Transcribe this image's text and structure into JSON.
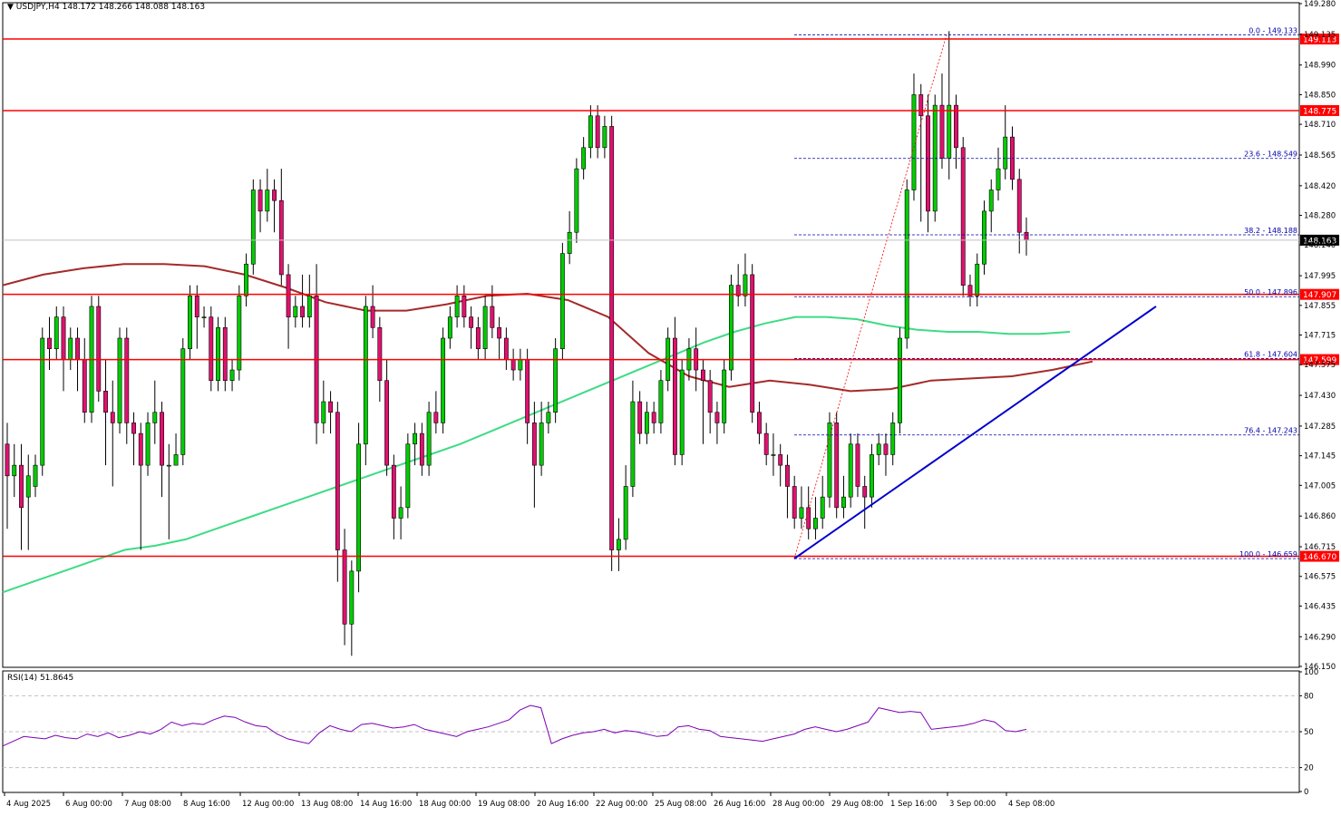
{
  "header": {
    "symbol": "USDJPY,H4",
    "ohlc": "148.172 148.266 148.088 148.163"
  },
  "rsi_header": "RSI(14) 51.8645",
  "colors": {
    "bull": "#00cc00",
    "bear": "#e0116f",
    "resistance": "#ff0000",
    "trendline": "#0000cc",
    "ma_slow": "#3ddc84",
    "ma_fast": "#a52a2a",
    "fib_line": "#0000aa",
    "rsi_line": "#7b00b4",
    "grid": "#c0c0c0"
  },
  "chart_data": [
    {
      "type": "candlestick",
      "title": "",
      "price_axis": {
        "ylim": [
          146.15,
          149.28
        ],
        "ticks": [
          "149.280",
          "149.135",
          "148.990",
          "148.850",
          "148.710",
          "148.565",
          "148.420",
          "148.280",
          "148.140",
          "147.995",
          "147.855",
          "147.715",
          "147.575",
          "147.430",
          "147.285",
          "147.145",
          "147.005",
          "146.860",
          "146.715",
          "146.575",
          "146.435",
          "146.290",
          "146.150"
        ]
      },
      "time_axis": {
        "labels": [
          "4 Aug 2025",
          "6 Aug 00:00",
          "7 Aug 08:00",
          "8 Aug 16:00",
          "12 Aug 00:00",
          "13 Aug 08:00",
          "14 Aug 16:00",
          "18 Aug 00:00",
          "19 Aug 08:00",
          "20 Aug 16:00",
          "22 Aug 00:00",
          "25 Aug 08:00",
          "26 Aug 16:00",
          "28 Aug 00:00",
          "29 Aug 08:00",
          "1 Sep 16:00",
          "3 Sep 00:00",
          "4 Sep 08:00"
        ]
      },
      "price_levels": [
        {
          "label": "149.113",
          "value": 149.113
        },
        {
          "label": "148.775",
          "value": 148.775
        },
        {
          "label": "147.907",
          "value": 147.907
        },
        {
          "label": "147.599",
          "value": 147.599
        },
        {
          "label": "146.670",
          "value": 146.67
        }
      ],
      "current_price": {
        "label": "148.163",
        "value": 148.163
      },
      "fibonacci": [
        {
          "label": "0.0 - 149.133",
          "value": 149.133
        },
        {
          "label": "23.6 - 148.549",
          "value": 148.549
        },
        {
          "label": "38.2 - 148.188",
          "value": 148.188
        },
        {
          "label": "50.0 - 147.896",
          "value": 147.896
        },
        {
          "label": "61.8 - 147.604",
          "value": 147.604
        },
        {
          "label": "76.4 - 147.243",
          "value": 147.243
        },
        {
          "label": "100.0 - 146.659",
          "value": 146.659
        }
      ],
      "candles": [
        [
          147.2,
          147.05,
          147.3,
          146.8
        ],
        [
          147.05,
          147.1,
          147.2,
          146.95
        ],
        [
          147.1,
          146.9,
          147.2,
          146.7
        ],
        [
          146.95,
          147.05,
          147.15,
          146.7
        ],
        [
          147.0,
          147.1,
          147.15,
          146.95
        ],
        [
          147.1,
          147.7,
          147.75,
          147.05
        ],
        [
          147.7,
          147.65,
          147.8,
          147.55
        ],
        [
          147.65,
          147.8,
          147.85,
          147.6
        ],
        [
          147.8,
          147.6,
          147.85,
          147.45
        ],
        [
          147.6,
          147.7,
          147.75,
          147.55
        ],
        [
          147.7,
          147.6,
          147.75,
          147.45
        ],
        [
          147.6,
          147.35,
          147.7,
          147.3
        ],
        [
          147.35,
          147.85,
          147.9,
          147.3
        ],
        [
          147.85,
          147.45,
          147.9,
          147.4
        ],
        [
          147.45,
          147.35,
          147.6,
          147.1
        ],
        [
          147.35,
          147.3,
          147.5,
          147.0
        ],
        [
          147.3,
          147.7,
          147.75,
          147.25
        ],
        [
          147.7,
          147.3,
          147.75,
          147.2
        ],
        [
          147.3,
          147.25,
          147.35,
          147.1
        ],
        [
          147.25,
          147.1,
          147.3,
          146.7
        ],
        [
          147.1,
          147.3,
          147.35,
          147.05
        ],
        [
          147.3,
          147.35,
          147.5,
          147.2
        ],
        [
          147.35,
          147.1,
          147.4,
          146.95
        ],
        [
          147.1,
          147.1,
          147.2,
          146.75
        ],
        [
          147.1,
          147.15,
          147.25,
          147.1
        ],
        [
          147.15,
          147.65,
          147.7,
          147.1
        ],
        [
          147.65,
          147.9,
          147.95,
          147.6
        ],
        [
          147.9,
          147.8,
          147.95,
          147.65
        ],
        [
          147.8,
          147.8,
          147.85,
          147.75
        ],
        [
          147.8,
          147.5,
          147.85,
          147.45
        ],
        [
          147.5,
          147.75,
          147.8,
          147.45
        ],
        [
          147.75,
          147.5,
          147.8,
          147.45
        ],
        [
          147.5,
          147.55,
          147.6,
          147.45
        ],
        [
          147.55,
          147.9,
          147.95,
          147.5
        ],
        [
          147.9,
          148.05,
          148.1,
          147.85
        ],
        [
          148.05,
          148.4,
          148.45,
          148.0
        ],
        [
          148.4,
          148.3,
          148.45,
          148.2
        ],
        [
          148.3,
          148.4,
          148.5,
          148.25
        ],
        [
          148.4,
          148.35,
          148.45,
          148.2
        ],
        [
          148.35,
          148.0,
          148.5,
          147.95
        ],
        [
          148.0,
          147.8,
          148.05,
          147.65
        ],
        [
          147.8,
          147.85,
          147.9,
          147.75
        ],
        [
          147.85,
          147.8,
          148.0,
          147.75
        ],
        [
          147.8,
          147.9,
          148.0,
          147.75
        ],
        [
          147.9,
          147.3,
          148.05,
          147.2
        ],
        [
          147.3,
          147.4,
          147.5,
          147.25
        ],
        [
          147.4,
          147.35,
          147.45,
          147.25
        ],
        [
          147.35,
          146.7,
          147.4,
          146.55
        ],
        [
          146.7,
          146.35,
          146.8,
          146.25
        ],
        [
          146.35,
          146.6,
          146.65,
          146.2
        ],
        [
          146.6,
          147.2,
          147.3,
          146.5
        ],
        [
          147.2,
          147.85,
          147.9,
          147.1
        ],
        [
          147.85,
          147.75,
          147.95,
          147.7
        ],
        [
          147.75,
          147.5,
          147.8,
          147.4
        ],
        [
          147.5,
          147.1,
          147.6,
          147.05
        ],
        [
          147.1,
          146.85,
          147.15,
          146.75
        ],
        [
          146.85,
          146.9,
          147.0,
          146.75
        ],
        [
          146.9,
          147.2,
          147.25,
          146.85
        ],
        [
          147.2,
          147.25,
          147.3,
          147.1
        ],
        [
          147.25,
          147.1,
          147.3,
          147.05
        ],
        [
          147.1,
          147.35,
          147.4,
          147.05
        ],
        [
          147.35,
          147.3,
          147.45,
          147.25
        ],
        [
          147.3,
          147.7,
          147.75,
          147.25
        ],
        [
          147.7,
          147.8,
          147.85,
          147.65
        ],
        [
          147.8,
          147.9,
          147.95,
          147.75
        ],
        [
          147.9,
          147.8,
          147.95,
          147.75
        ],
        [
          147.8,
          147.75,
          147.85,
          147.65
        ],
        [
          147.75,
          147.65,
          147.8,
          147.6
        ],
        [
          147.65,
          147.85,
          147.9,
          147.6
        ],
        [
          147.85,
          147.75,
          147.95,
          147.7
        ],
        [
          147.75,
          147.7,
          147.8,
          147.6
        ],
        [
          147.7,
          147.6,
          147.75,
          147.55
        ],
        [
          147.6,
          147.55,
          147.65,
          147.5
        ],
        [
          147.55,
          147.6,
          147.65,
          147.5
        ],
        [
          147.6,
          147.3,
          147.65,
          147.2
        ],
        [
          147.3,
          147.1,
          147.4,
          146.9
        ],
        [
          147.1,
          147.3,
          147.4,
          147.05
        ],
        [
          147.3,
          147.35,
          147.4,
          147.25
        ],
        [
          147.35,
          147.65,
          147.7,
          147.3
        ],
        [
          147.65,
          148.1,
          148.15,
          147.6
        ],
        [
          148.1,
          148.2,
          148.3,
          148.05
        ],
        [
          148.2,
          148.5,
          148.55,
          148.15
        ],
        [
          148.5,
          148.6,
          148.65,
          148.45
        ],
        [
          148.6,
          148.75,
          148.8,
          148.55
        ],
        [
          148.75,
          148.6,
          148.8,
          148.55
        ],
        [
          148.6,
          148.7,
          148.75,
          148.55
        ],
        [
          148.7,
          146.7,
          148.75,
          146.6
        ],
        [
          146.7,
          146.75,
          146.85,
          146.6
        ],
        [
          146.75,
          147.0,
          147.1,
          146.7
        ],
        [
          147.0,
          147.4,
          147.5,
          146.95
        ],
        [
          147.4,
          147.25,
          147.45,
          147.2
        ],
        [
          147.25,
          147.35,
          147.4,
          147.2
        ],
        [
          147.35,
          147.3,
          147.4,
          147.25
        ],
        [
          147.3,
          147.5,
          147.55,
          147.25
        ],
        [
          147.5,
          147.7,
          147.75,
          147.45
        ],
        [
          147.7,
          147.15,
          147.8,
          147.1
        ],
        [
          147.15,
          147.55,
          147.6,
          147.1
        ],
        [
          147.55,
          147.65,
          147.7,
          147.5
        ],
        [
          147.65,
          147.55,
          147.75,
          147.45
        ],
        [
          147.55,
          147.5,
          147.6,
          147.2
        ],
        [
          147.5,
          147.35,
          147.55,
          147.25
        ],
        [
          147.35,
          147.3,
          147.4,
          147.2
        ],
        [
          147.3,
          147.55,
          147.6,
          147.25
        ],
        [
          147.55,
          147.95,
          148.0,
          147.5
        ],
        [
          147.95,
          147.9,
          148.05,
          147.85
        ],
        [
          147.9,
          148.0,
          148.1,
          147.85
        ],
        [
          148.0,
          147.35,
          148.05,
          147.3
        ],
        [
          147.35,
          147.25,
          147.4,
          147.2
        ],
        [
          147.25,
          147.15,
          147.3,
          147.1
        ],
        [
          147.15,
          147.15,
          147.25,
          147.05
        ],
        [
          147.15,
          147.1,
          147.2,
          147.0
        ],
        [
          147.1,
          147.0,
          147.15,
          146.85
        ],
        [
          147.0,
          146.85,
          147.05,
          146.8
        ],
        [
          146.85,
          146.9,
          147.0,
          146.8
        ],
        [
          146.9,
          146.8,
          147.0,
          146.75
        ],
        [
          146.8,
          146.85,
          146.95,
          146.75
        ],
        [
          146.85,
          146.95,
          147.05,
          146.8
        ],
        [
          146.95,
          147.3,
          147.35,
          146.9
        ],
        [
          147.3,
          146.9,
          147.35,
          146.85
        ],
        [
          146.9,
          146.95,
          147.05,
          146.85
        ],
        [
          146.95,
          147.2,
          147.25,
          146.9
        ],
        [
          147.2,
          147.0,
          147.25,
          146.95
        ],
        [
          147.0,
          146.95,
          147.05,
          146.8
        ],
        [
          146.95,
          147.15,
          147.2,
          146.9
        ],
        [
          147.15,
          147.2,
          147.25,
          147.1
        ],
        [
          147.2,
          147.15,
          147.25,
          147.05
        ],
        [
          147.15,
          147.3,
          147.35,
          147.1
        ],
        [
          147.3,
          147.7,
          147.75,
          147.25
        ],
        [
          147.7,
          148.4,
          148.45,
          147.65
        ],
        [
          148.4,
          148.85,
          148.95,
          148.35
        ],
        [
          148.85,
          148.75,
          148.9,
          148.25
        ],
        [
          148.75,
          148.3,
          148.85,
          148.2
        ],
        [
          148.3,
          148.8,
          148.85,
          148.25
        ],
        [
          148.8,
          148.55,
          148.95,
          148.5
        ],
        [
          148.55,
          148.8,
          149.15,
          148.45
        ],
        [
          148.8,
          148.6,
          148.85,
          148.5
        ],
        [
          148.6,
          147.95,
          148.65,
          147.9
        ],
        [
          147.95,
          147.9,
          148.0,
          147.85
        ],
        [
          147.9,
          148.05,
          148.1,
          147.85
        ],
        [
          148.05,
          148.3,
          148.35,
          148.0
        ],
        [
          148.3,
          148.4,
          148.45,
          148.2
        ],
        [
          148.4,
          148.5,
          148.6,
          148.35
        ],
        [
          148.5,
          148.65,
          148.8,
          148.45
        ],
        [
          148.65,
          148.45,
          148.7,
          148.4
        ],
        [
          148.45,
          148.2,
          148.5,
          148.1
        ],
        [
          148.2,
          148.163,
          148.27,
          148.09
        ]
      ],
      "ma_slow": [
        146.5,
        146.55,
        146.6,
        146.65,
        146.7,
        146.72,
        146.75,
        146.8,
        146.85,
        146.9,
        146.95,
        147.0,
        147.05,
        147.1,
        147.15,
        147.2,
        147.26,
        147.32,
        147.38,
        147.44,
        147.5,
        147.56,
        147.62,
        147.68,
        147.73,
        147.77,
        147.8,
        147.8,
        147.79,
        147.76,
        147.74,
        147.73,
        147.73,
        147.72,
        147.72,
        147.73
      ],
      "ma_fast": [
        147.95,
        148.0,
        148.03,
        148.05,
        148.05,
        148.04,
        148.0,
        147.94,
        147.87,
        147.83,
        147.83,
        147.86,
        147.9,
        147.91,
        147.88,
        147.8,
        147.63,
        147.52,
        147.47,
        147.5,
        147.48,
        147.45,
        147.46,
        147.5,
        147.51,
        147.52,
        147.55,
        147.59
      ],
      "trendline": {
        "from": [
          146.659
        ],
        "to": [
          147.85
        ]
      }
    },
    {
      "type": "line",
      "title": "RSI(14) 51.8645",
      "ylim": [
        0,
        100
      ],
      "ticks": [
        "100",
        "80",
        "50",
        "20",
        "0"
      ],
      "levels": [
        80,
        50,
        20
      ],
      "values": [
        38,
        42,
        46,
        45,
        44,
        47,
        45,
        44,
        48,
        46,
        49,
        45,
        47,
        50,
        48,
        52,
        58,
        55,
        57,
        56,
        60,
        63,
        62,
        58,
        55,
        54,
        48,
        44,
        42,
        40,
        49,
        55,
        52,
        50,
        56,
        57,
        55,
        53,
        54,
        56,
        52,
        50,
        48,
        46,
        50,
        52,
        54,
        57,
        60,
        68,
        72,
        70,
        40,
        44,
        47,
        49,
        50,
        52,
        49,
        51,
        50,
        48,
        46,
        47,
        54,
        55,
        52,
        51,
        46,
        45,
        44,
        43,
        42,
        44,
        46,
        48,
        52,
        54,
        52,
        50,
        52,
        55,
        58,
        70,
        68,
        66,
        67,
        66,
        52,
        53,
        54,
        55,
        57,
        60,
        58,
        51,
        50,
        52
      ]
    }
  ]
}
